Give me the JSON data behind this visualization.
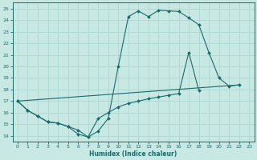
{
  "xlabel": "Humidex (Indice chaleur)",
  "xlim": [
    -0.5,
    23.5
  ],
  "ylim": [
    13.5,
    25.5
  ],
  "yticks": [
    14,
    15,
    16,
    17,
    18,
    19,
    20,
    21,
    22,
    23,
    24,
    25
  ],
  "xticks": [
    0,
    1,
    2,
    3,
    4,
    5,
    6,
    7,
    8,
    9,
    10,
    11,
    12,
    13,
    14,
    15,
    16,
    17,
    18,
    19,
    20,
    21,
    22,
    23
  ],
  "background_color": "#c8e8e4",
  "grid_color": "#b0d8d4",
  "line_color": "#1a6b6b",
  "lines": [
    {
      "x": [
        0,
        1,
        2,
        3,
        4,
        5,
        6,
        7,
        8,
        9,
        10,
        11,
        12,
        13,
        14,
        15,
        16,
        17,
        18,
        19,
        20,
        21,
        22
      ],
      "y": [
        17.0,
        16.2,
        15.7,
        15.2,
        15.1,
        14.8,
        14.15,
        13.9,
        14.4,
        15.5,
        20.0,
        24.3,
        24.8,
        24.3,
        24.85,
        24.8,
        24.75,
        24.2,
        23.6,
        21.2,
        19.0,
        18.3,
        18.4
      ]
    },
    {
      "x": [
        0,
        22
      ],
      "y": [
        17.0,
        18.4
      ]
    },
    {
      "x": [
        0,
        1,
        2,
        3,
        4,
        5,
        6,
        7,
        8,
        9,
        10,
        11,
        12,
        13,
        14,
        15,
        16,
        17,
        18,
        19,
        20,
        21,
        22
      ],
      "y": [
        17.0,
        16.2,
        15.7,
        15.2,
        15.1,
        14.8,
        14.5,
        13.9,
        15.5,
        16.0,
        16.5,
        16.8,
        17.0,
        17.2,
        17.35,
        17.5,
        17.65,
        21.2,
        17.9,
        null,
        null,
        null,
        null
      ]
    }
  ]
}
